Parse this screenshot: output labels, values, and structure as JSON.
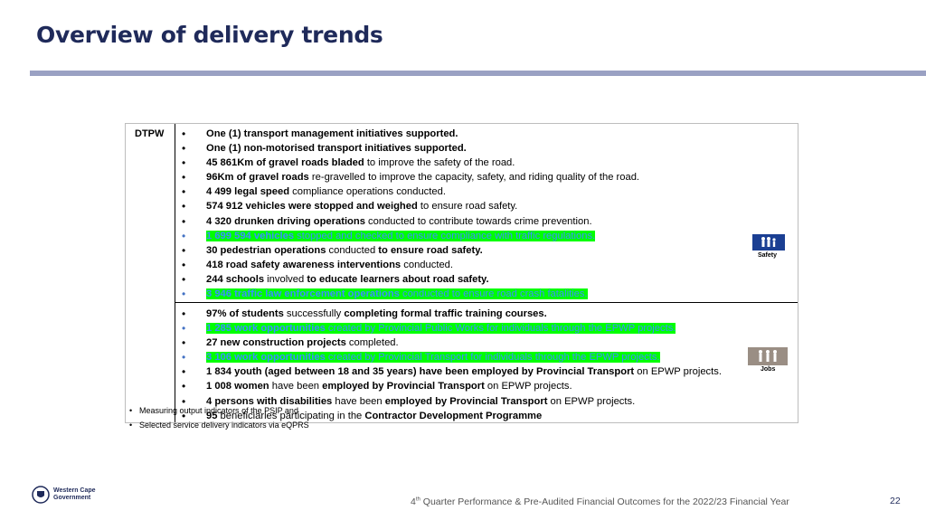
{
  "title": "Overview of delivery trends",
  "table": {
    "dept": "DTPW",
    "top_items": [
      {
        "b": "One (1) transport management initiatives supported.",
        "t": ""
      },
      {
        "b": "One (1) non-motorised transport initiatives supported.",
        "t": ""
      },
      {
        "b": "45 861Km of gravel roads bladed",
        "t": " to improve the safety of the road."
      },
      {
        "b": "96Km of gravel roads",
        "t": " re-gravelled to improve the capacity, safety, and riding quality of the road."
      },
      {
        "b": "4 499 legal speed",
        "t": " compliance operations conducted."
      },
      {
        "b": "574 912 vehicles were stopped and weighed",
        "t": " to ensure road safety."
      },
      {
        "b": "4 320 drunken driving operations",
        "t": " conducted to contribute towards crime prevention."
      },
      {
        "b": "1 699 594 vehicles",
        "t": " stopped and checked to ensure compliance with traffic regulations."
      },
      {
        "b": "30 pedestrian operations",
        "t": " conducted ",
        "b2": "to ensure road safety."
      },
      {
        "b": "418 road safety awareness interventions",
        "t": " conducted."
      },
      {
        "b": "244 schools",
        "t": " involved ",
        "b2": "to educate learners about road safety."
      },
      {
        "b": "3 946 traffic law enforcement operations",
        "t": " conducted to ensure road crash fatalities."
      }
    ],
    "bottom_items": [
      {
        "b": "97% of students",
        "t": " successfully ",
        "b2": "completing formal traffic training courses."
      },
      {
        "b": "1 285 work opportunities",
        "t": " created by Provincial Public Works for individuals through the EPWP projects."
      },
      {
        "b": "27 new construction projects",
        "t": " completed."
      },
      {
        "b": "3 106 work opportunities",
        "t": " created by Provincial Transport for individuals through the EPWP projects."
      },
      {
        "b": "1 834 youth (aged between 18 and 35 years) have been employed by Provincial Transport",
        "t": " on EPWP projects."
      },
      {
        "b": "1 008 women",
        "t": " have been ",
        "b2": "employed by Provincial Transport",
        "t2": " on EPWP projects."
      },
      {
        "b": "4 persons with disabilities",
        "t": " have been ",
        "b2": "employed by Provincial Transport",
        "t2": " on EPWP projects."
      },
      {
        "b": "95",
        "t": " beneficiaries participating in the ",
        "b2": "Contractor Development Programme"
      }
    ],
    "safety_label": "Safety",
    "jobs_label": "Jobs"
  },
  "footnotes": [
    "Measuring output indicators of the PSIP and",
    "Selected service delivery indicators via eQPRS"
  ],
  "logo": {
    "line1": "Western Cape",
    "line2": "Government"
  },
  "footer": {
    "pre": "4",
    "sup": "th",
    "post": " Quarter Performance & Pre-Audited Financial Outcomes for the 2022/23 Financial Year"
  },
  "page_number": "22"
}
